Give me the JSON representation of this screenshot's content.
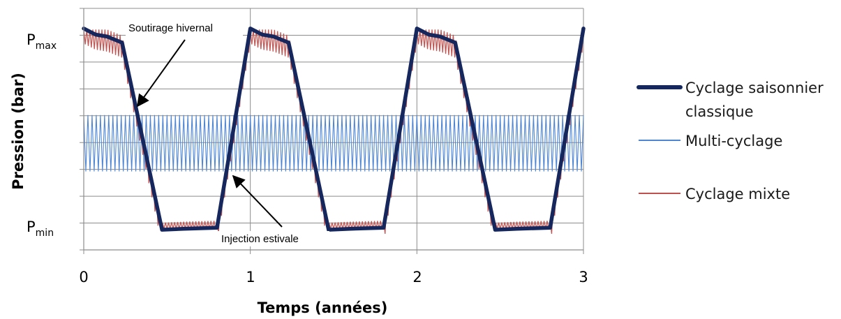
{
  "chart_data": {
    "type": "line",
    "title": "",
    "xlabel": "Temps (années)",
    "ylabel": "Pression (bar)",
    "xlim": [
      0,
      3
    ],
    "ylim": [
      -0.1,
      1.1
    ],
    "x_ticks": [
      0,
      1,
      2,
      3
    ],
    "x_tick_labels": [
      "0",
      "1",
      "2",
      "3"
    ],
    "y_levels": [
      {
        "value": 1,
        "label_main": "P",
        "label_sub": "max"
      },
      {
        "value": 0,
        "label_main": "P",
        "label_sub": "min"
      }
    ],
    "grid": true,
    "legend_position": "right",
    "series": [
      {
        "name": "Cyclage saisonnier classique",
        "legend_lines": [
          "Cyclage saisonnier",
          "classique"
        ],
        "color": "#16275e",
        "x": [
          0,
          0.07,
          0.14,
          0.23,
          0.47,
          0.6,
          0.8,
          1.0,
          1.07,
          1.14,
          1.23,
          1.47,
          1.6,
          1.8,
          2.0,
          2.07,
          2.14,
          2.23,
          2.47,
          2.6,
          2.8,
          3.0
        ],
        "y": [
          1.0,
          0.97,
          0.96,
          0.93,
          0.0,
          0.005,
          0.01,
          1.0,
          0.97,
          0.96,
          0.93,
          0.0,
          0.005,
          0.01,
          1.0,
          0.97,
          0.96,
          0.93,
          0.0,
          0.005,
          0.01,
          1.0
        ]
      },
      {
        "name": "Multi-cyclage",
        "legend_lines": [
          "Multi-cyclage"
        ],
        "color": "#4f86d3",
        "pattern": "oscillation",
        "y_min": 0.29,
        "y_max": 0.57,
        "cycles": 120
      },
      {
        "name": "Cyclage mixte",
        "legend_lines": [
          "Cyclage mixte"
        ],
        "color": "#c0504d",
        "pattern": "oscillation around seasonal curve",
        "amplitude": 0.1,
        "cycles": 165
      }
    ],
    "annotations": [
      {
        "text": "Soutirage hivernal",
        "x": 0.34,
        "y": 0.63
      },
      {
        "text": "Injection estivale",
        "x": 0.89,
        "y": 0.24
      }
    ]
  }
}
